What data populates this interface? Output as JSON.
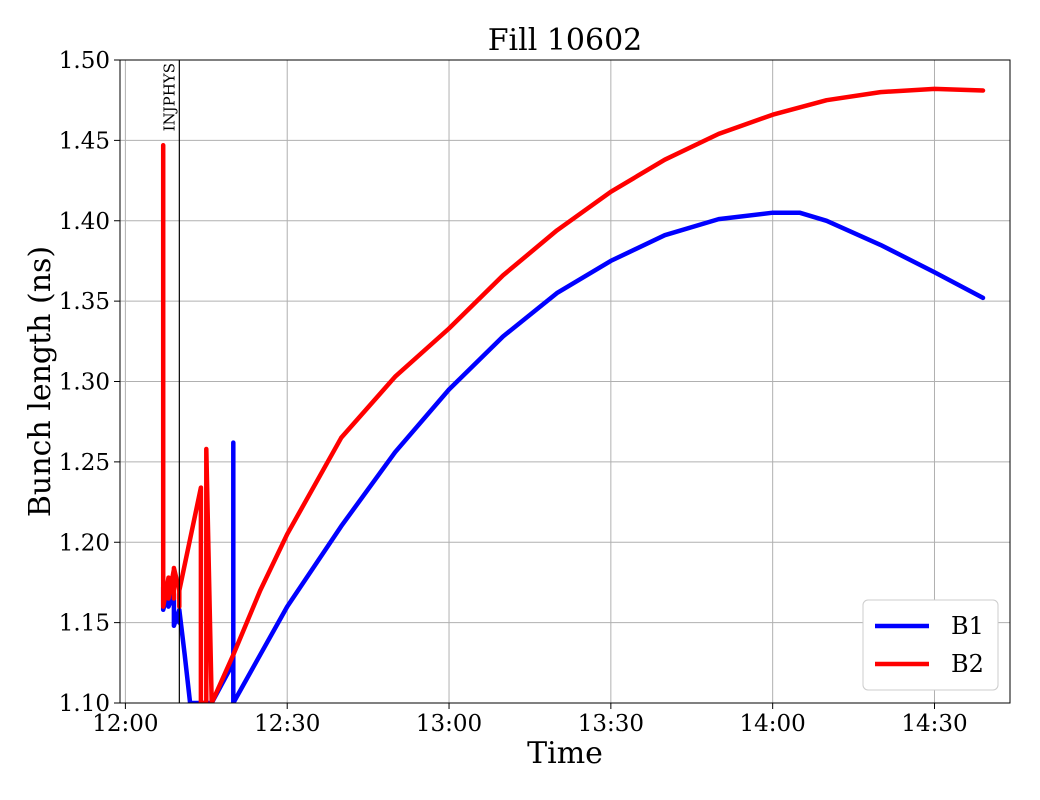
{
  "chart_data": {
    "type": "line",
    "title": "Fill 10602",
    "xlabel": "Time",
    "ylabel": "Bunch length (ns)",
    "xlim": [
      "11:59",
      "14:44"
    ],
    "ylim": [
      1.1,
      1.5
    ],
    "xticks": [
      "12:00",
      "12:30",
      "13:00",
      "13:30",
      "14:00",
      "14:30"
    ],
    "yticks": [
      "1.10",
      "1.15",
      "1.20",
      "1.25",
      "1.30",
      "1.35",
      "1.40",
      "1.45",
      "1.50"
    ],
    "grid": true,
    "legend_position": "bottom-right",
    "annotations": [
      {
        "text": "INJPHYS",
        "x": "12:10",
        "type": "vertical-line"
      }
    ],
    "series": [
      {
        "name": "B1",
        "color": "#0000ff",
        "points": [
          [
            "12:07",
            1.172
          ],
          [
            "12:07",
            1.158
          ],
          [
            "12:08",
            1.17
          ],
          [
            "12:08",
            1.16
          ],
          [
            "12:09",
            1.168
          ],
          [
            "12:09",
            1.148
          ],
          [
            "12:10",
            1.158
          ],
          [
            "12:10",
            1.15
          ],
          [
            "12:10",
            1.158
          ],
          [
            "12:11",
            1.13
          ],
          [
            "12:12",
            1.1
          ],
          [
            "12:16",
            1.1
          ],
          [
            "12:20",
            1.125
          ],
          [
            "12:20",
            1.262
          ],
          [
            "12:20",
            1.1
          ],
          [
            "12:25",
            1.13
          ],
          [
            "12:30",
            1.16
          ],
          [
            "12:40",
            1.21
          ],
          [
            "12:50",
            1.256
          ],
          [
            "13:00",
            1.295
          ],
          [
            "13:10",
            1.328
          ],
          [
            "13:20",
            1.355
          ],
          [
            "13:30",
            1.375
          ],
          [
            "13:40",
            1.391
          ],
          [
            "13:50",
            1.401
          ],
          [
            "14:00",
            1.405
          ],
          [
            "14:05",
            1.405
          ],
          [
            "14:10",
            1.4
          ],
          [
            "14:20",
            1.385
          ],
          [
            "14:30",
            1.368
          ],
          [
            "14:39",
            1.352
          ]
        ]
      },
      {
        "name": "B2",
        "color": "#ff0000",
        "points": [
          [
            "12:07",
            1.163
          ],
          [
            "12:07",
            1.447
          ],
          [
            "12:07",
            1.16
          ],
          [
            "12:08",
            1.178
          ],
          [
            "12:08",
            1.165
          ],
          [
            "12:09",
            1.183
          ],
          [
            "12:09",
            1.165
          ],
          [
            "12:09",
            1.184
          ],
          [
            "12:10",
            1.17
          ],
          [
            "12:10",
            1.16
          ],
          [
            "12:10",
            1.17
          ],
          [
            "12:14",
            1.234
          ],
          [
            "12:14",
            1.1
          ],
          [
            "12:15",
            1.1
          ],
          [
            "12:15",
            1.258
          ],
          [
            "12:16",
            1.1
          ],
          [
            "12:20",
            1.13
          ],
          [
            "12:25",
            1.17
          ],
          [
            "12:30",
            1.205
          ],
          [
            "12:40",
            1.265
          ],
          [
            "12:50",
            1.303
          ],
          [
            "13:00",
            1.333
          ],
          [
            "13:10",
            1.366
          ],
          [
            "13:20",
            1.394
          ],
          [
            "13:30",
            1.418
          ],
          [
            "13:40",
            1.438
          ],
          [
            "13:50",
            1.454
          ],
          [
            "14:00",
            1.466
          ],
          [
            "14:10",
            1.475
          ],
          [
            "14:20",
            1.48
          ],
          [
            "14:30",
            1.482
          ],
          [
            "14:39",
            1.481
          ]
        ]
      }
    ]
  }
}
